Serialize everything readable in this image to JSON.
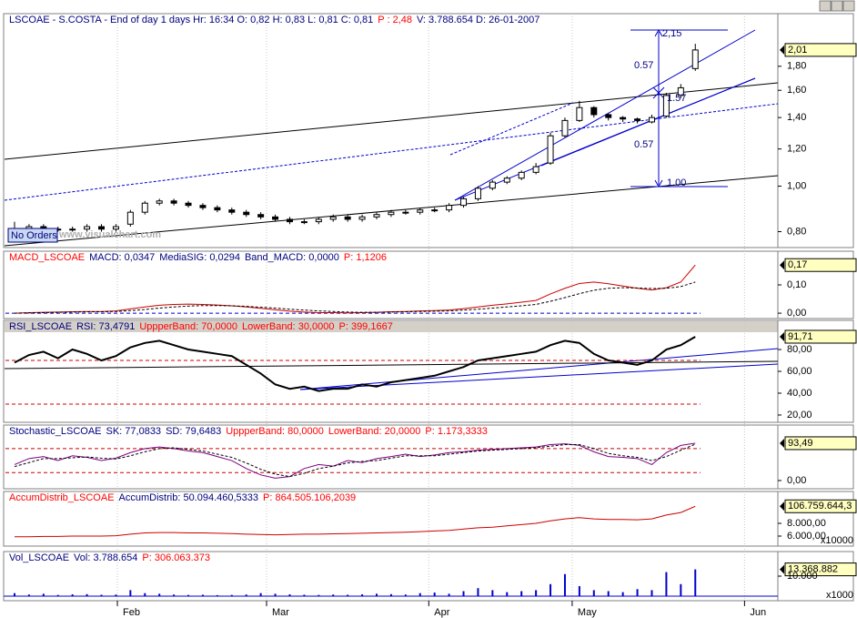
{
  "chart_data": [
    {
      "type": "candlestick",
      "header": [
        {
          "text": "LSCOAE - S.COSTA - End of day 1 days  Hr: 16:34  O: 0,82  H: 0,83  L: 0,81  C: 0,81",
          "color": "#000080"
        },
        {
          "text": "P : 2,48",
          "color": "#ff0000"
        },
        {
          "text": "V: 3.788.654  D: 26-01-2007",
          "color": "#000080"
        }
      ],
      "open": [
        0.79,
        0.8,
        0.82,
        0.81,
        0.81,
        0.81,
        0.82,
        0.81,
        0.83,
        0.88,
        0.92,
        0.93,
        0.92,
        0.91,
        0.9,
        0.89,
        0.88,
        0.87,
        0.86,
        0.85,
        0.84,
        0.84,
        0.85,
        0.86,
        0.85,
        0.86,
        0.87,
        0.88,
        0.88,
        0.89,
        0.89,
        0.91,
        0.94,
        0.99,
        1.02,
        1.04,
        1.07,
        1.12,
        1.28,
        1.38,
        1.47,
        1.42,
        1.4,
        1.39,
        1.37,
        1.41,
        1.56,
        1.78
      ],
      "high": [
        0.84,
        0.83,
        0.83,
        0.82,
        0.82,
        0.83,
        0.83,
        0.83,
        0.89,
        0.93,
        0.94,
        0.94,
        0.93,
        0.92,
        0.91,
        0.9,
        0.89,
        0.88,
        0.87,
        0.86,
        0.85,
        0.86,
        0.87,
        0.87,
        0.87,
        0.88,
        0.89,
        0.89,
        0.9,
        0.9,
        0.92,
        0.95,
        1.0,
        1.03,
        1.05,
        1.08,
        1.12,
        1.3,
        1.4,
        1.52,
        1.48,
        1.43,
        1.41,
        1.4,
        1.42,
        1.58,
        1.65,
        2.01
      ],
      "low": [
        0.78,
        0.79,
        0.8,
        0.8,
        0.8,
        0.8,
        0.8,
        0.8,
        0.82,
        0.87,
        0.91,
        0.91,
        0.9,
        0.89,
        0.88,
        0.87,
        0.86,
        0.85,
        0.84,
        0.83,
        0.83,
        0.83,
        0.84,
        0.84,
        0.84,
        0.85,
        0.86,
        0.87,
        0.87,
        0.88,
        0.88,
        0.9,
        0.93,
        0.98,
        1.01,
        1.03,
        1.06,
        1.11,
        1.27,
        1.37,
        1.4,
        1.38,
        1.37,
        1.36,
        1.36,
        1.4,
        1.54,
        1.76
      ],
      "close": [
        0.8,
        0.82,
        0.81,
        0.81,
        0.81,
        0.82,
        0.81,
        0.82,
        0.88,
        0.92,
        0.93,
        0.92,
        0.91,
        0.9,
        0.89,
        0.88,
        0.87,
        0.86,
        0.85,
        0.84,
        0.84,
        0.85,
        0.86,
        0.85,
        0.86,
        0.87,
        0.88,
        0.88,
        0.89,
        0.89,
        0.91,
        0.94,
        0.99,
        1.02,
        1.04,
        1.07,
        1.1,
        1.28,
        1.38,
        1.47,
        1.42,
        1.4,
        1.39,
        1.38,
        1.4,
        1.56,
        1.62,
        1.95
      ],
      "ylim": [
        0.74,
        2.33
      ],
      "log": true,
      "yticks": [
        {
          "value": 0.8,
          "label": "0,80"
        },
        {
          "value": 1.0,
          "label": "1,00"
        },
        {
          "value": 1.2,
          "label": "1,20"
        },
        {
          "value": 1.4,
          "label": "1,40"
        },
        {
          "value": 1.6,
          "label": "1,60"
        },
        {
          "value": 1.8,
          "label": "1,80"
        }
      ],
      "last_label": "2,01",
      "annotations": [
        "2,15",
        "0.57",
        "1.57",
        "0.57",
        "1.00",
        "No Orders",
        "www.visualchart.com"
      ]
    },
    {
      "type": "line",
      "header": [
        {
          "text": "MACD_LSCOAE",
          "color": "#ff0000"
        },
        {
          "text": "MACD: 0,0347",
          "color": "#000080"
        },
        {
          "text": "MediaSIG: 0,0294",
          "color": "#000080"
        },
        {
          "text": "Band_MACD: 0,0000",
          "color": "#000080"
        },
        {
          "text": "P: 1,1206",
          "color": "#ff0000"
        }
      ],
      "series": [
        {
          "name": "MACD",
          "color": "#cc0000",
          "dash": false,
          "values": [
            0.0,
            0.002,
            0.003,
            0.004,
            0.005,
            0.006,
            0.006,
            0.008,
            0.015,
            0.022,
            0.028,
            0.031,
            0.032,
            0.031,
            0.029,
            0.026,
            0.022,
            0.017,
            0.012,
            0.007,
            0.004,
            0.002,
            0.002,
            0.001,
            0.002,
            0.003,
            0.005,
            0.006,
            0.008,
            0.009,
            0.011,
            0.016,
            0.022,
            0.028,
            0.033,
            0.039,
            0.045,
            0.068,
            0.088,
            0.105,
            0.11,
            0.104,
            0.096,
            0.088,
            0.082,
            0.09,
            0.11,
            0.17
          ]
        },
        {
          "name": "MediaSIG",
          "color": "#000000",
          "dash": true,
          "values": [
            0.0,
            0.001,
            0.002,
            0.003,
            0.004,
            0.005,
            0.005,
            0.006,
            0.009,
            0.013,
            0.018,
            0.022,
            0.025,
            0.027,
            0.027,
            0.026,
            0.024,
            0.021,
            0.018,
            0.014,
            0.011,
            0.008,
            0.006,
            0.004,
            0.003,
            0.003,
            0.004,
            0.005,
            0.006,
            0.007,
            0.008,
            0.011,
            0.014,
            0.018,
            0.022,
            0.026,
            0.031,
            0.042,
            0.055,
            0.069,
            0.081,
            0.088,
            0.09,
            0.089,
            0.087,
            0.088,
            0.094,
            0.11
          ]
        }
      ],
      "bands": [
        {
          "value": 0,
          "color": "#0000cc"
        }
      ],
      "ylim": [
        -0.019,
        0.219
      ],
      "yticks": [
        {
          "value": 0,
          "label": "0,00"
        },
        {
          "value": 0.1,
          "label": "0,10"
        }
      ],
      "last_label": "0,17"
    },
    {
      "type": "line",
      "header": [
        {
          "text": "RSI_LSCOAE",
          "color": "#000080"
        },
        {
          "text": "RSI: 73,4791",
          "color": "#000080"
        },
        {
          "text": "UppperBand: 70,0000",
          "color": "#ff0000"
        },
        {
          "text": "LowerBand: 30,0000",
          "color": "#ff0000"
        },
        {
          "text": "P: 399,1667",
          "color": "#ff0000"
        }
      ],
      "series": [
        {
          "name": "RSI",
          "color": "#000000",
          "dash": false,
          "values": [
            68,
            75,
            78,
            72,
            80,
            76,
            70,
            74,
            82,
            86,
            88,
            84,
            80,
            78,
            76,
            74,
            66,
            58,
            48,
            44,
            46,
            42,
            44,
            44,
            48,
            46,
            50,
            52,
            54,
            56,
            60,
            64,
            70,
            72,
            74,
            76,
            78,
            84,
            88,
            86,
            76,
            70,
            68,
            66,
            70,
            80,
            84,
            91.7
          ]
        }
      ],
      "bands": [
        {
          "value": 70,
          "color": "#cc0000"
        },
        {
          "value": 30,
          "color": "#cc0000"
        }
      ],
      "ylim": [
        13.3,
        106.7
      ],
      "yticks": [
        {
          "value": 20,
          "label": "20,00"
        },
        {
          "value": 40,
          "label": "40,00"
        },
        {
          "value": 60,
          "label": "60,00"
        },
        {
          "value": 80,
          "label": "80,00"
        }
      ],
      "last_label": "91,71"
    },
    {
      "type": "line",
      "header": [
        {
          "text": "Stochastic_LSCOAE",
          "color": "#000080"
        },
        {
          "text": "SK: 77,0833",
          "color": "#000080"
        },
        {
          "text": "SD: 79,6483",
          "color": "#000080"
        },
        {
          "text": "UppperBand: 80,0000",
          "color": "#ff0000"
        },
        {
          "text": "LowerBand: 20,0000",
          "color": "#ff0000"
        },
        {
          "text": "P: 1.173,3333",
          "color": "#ff0000"
        }
      ],
      "series": [
        {
          "name": "SK",
          "color": "#800080",
          "dash": false,
          "values": [
            40,
            55,
            60,
            50,
            62,
            58,
            50,
            56,
            70,
            80,
            84,
            80,
            74,
            70,
            60,
            50,
            30,
            14,
            6,
            10,
            30,
            40,
            36,
            50,
            45,
            55,
            60,
            66,
            60,
            64,
            70,
            72,
            76,
            78,
            80,
            82,
            84,
            90,
            92,
            88,
            72,
            60,
            58,
            55,
            40,
            70,
            88,
            93.5
          ]
        },
        {
          "name": "SD",
          "color": "#000000",
          "dash": true,
          "values": [
            35,
            45,
            55,
            55,
            57,
            59,
            56,
            54,
            62,
            72,
            80,
            82,
            78,
            74,
            66,
            58,
            44,
            28,
            16,
            10,
            18,
            30,
            36,
            44,
            48,
            50,
            56,
            62,
            62,
            62,
            66,
            70,
            74,
            76,
            78,
            80,
            82,
            86,
            90,
            90,
            80,
            68,
            62,
            58,
            50,
            60,
            76,
            91
          ]
        }
      ],
      "bands": [
        {
          "value": 80,
          "color": "#cc0000"
        },
        {
          "value": 20,
          "color": "#cc0000"
        }
      ],
      "ylim": [
        -20.6,
        139
      ],
      "yticks": [
        {
          "value": 0,
          "label": "0,00"
        }
      ],
      "last_label": "93,49"
    },
    {
      "type": "line",
      "header": [
        {
          "text": "AccumDistrib_LSCOAE",
          "color": "#ff0000"
        },
        {
          "text": "AccumDistrib: 50.094.460,5333",
          "color": "#000080"
        },
        {
          "text": "P: 864.505.106,2039",
          "color": "#ff0000"
        }
      ],
      "series": [
        {
          "name": "AccumDistrib",
          "color": "#cc0000",
          "dash": false,
          "values": [
            5900,
            5900,
            5950,
            5950,
            6000,
            6000,
            6000,
            6050,
            6300,
            6500,
            6550,
            6550,
            6500,
            6500,
            6450,
            6400,
            6300,
            6250,
            6200,
            6250,
            6300,
            6300,
            6350,
            6400,
            6450,
            6500,
            6550,
            6600,
            6700,
            6800,
            6900,
            7100,
            7300,
            7400,
            7600,
            7800,
            8000,
            8400,
            8700,
            8900,
            8700,
            8600,
            8600,
            8550,
            8700,
            9300,
            9700,
            10676
          ]
        }
      ],
      "ylim": [
        4430,
        13000
      ],
      "yticks": [
        {
          "value": 6000,
          "label": "6.000,00"
        },
        {
          "value": 8000,
          "label": "8.000,00"
        }
      ],
      "last_label": "106.759.644,3",
      "unit": "x10000"
    },
    {
      "type": "bar",
      "header": [
        {
          "text": "Vol_LSCOAE",
          "color": "#000080"
        },
        {
          "text": "Vol: 3.788.654",
          "color": "#000080"
        },
        {
          "text": "P: 306.063.373",
          "color": "#ff0000"
        }
      ],
      "color": "#0000cc",
      "values": [
        1500,
        800,
        1200,
        600,
        900,
        1000,
        700,
        800,
        3000,
        1500,
        1200,
        800,
        600,
        700,
        500,
        600,
        800,
        1500,
        1200,
        900,
        700,
        600,
        800,
        700,
        900,
        1200,
        1000,
        800,
        1500,
        1800,
        1200,
        2500,
        4000,
        3000,
        2000,
        2500,
        3000,
        6000,
        11000,
        5000,
        3000,
        2500,
        2000,
        3500,
        3000,
        12000,
        6000,
        13369
      ],
      "ylim": [
        -2270,
        22270
      ],
      "yticks": [
        {
          "value": 10000,
          "label": "10.000"
        }
      ],
      "last_label": "13.368.882",
      "unit": "x1000",
      "xlim": [
        -0.25,
        52.7
      ],
      "xticks": [
        {
          "value": 7.1,
          "label": "Feb"
        },
        {
          "value": 17.4,
          "label": "Mar"
        },
        {
          "value": 28.6,
          "label": "Apr"
        },
        {
          "value": 38.5,
          "label": "May"
        },
        {
          "value": 50.4,
          "label": "Jun"
        }
      ]
    }
  ]
}
